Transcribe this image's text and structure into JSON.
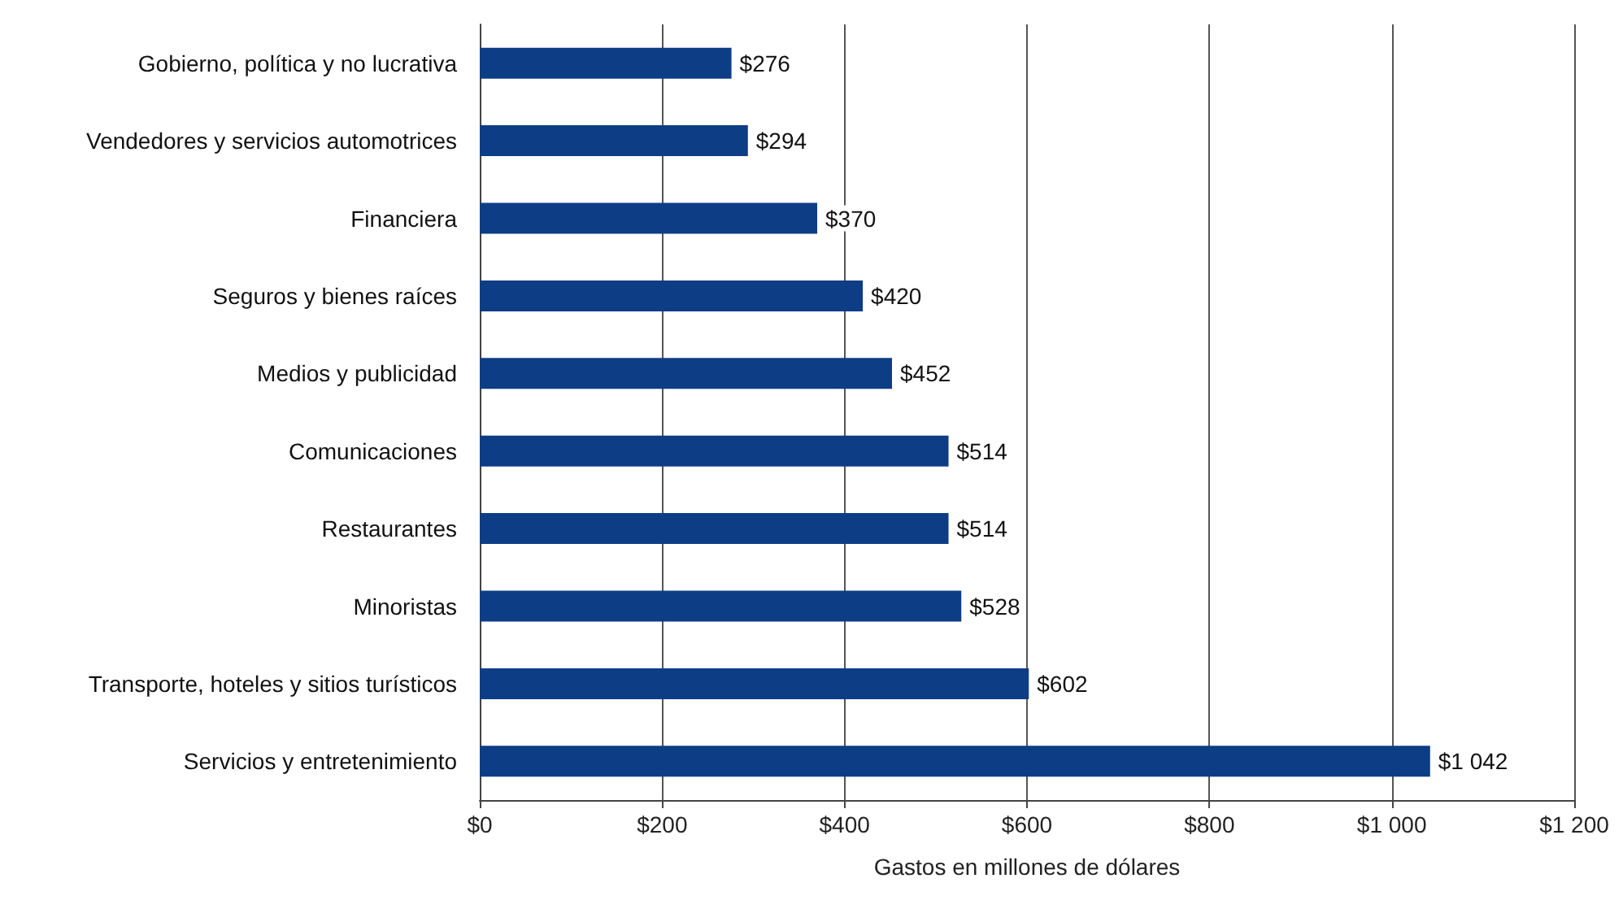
{
  "chart_data": {
    "type": "bar",
    "orientation": "horizontal",
    "xlabel": "Gastos en millones de dólares",
    "categories": [
      "Gobierno, política y no lucrativa",
      "Vendedores y servicios automotrices",
      "Financiera",
      "Seguros y bienes raíces",
      "Medios y publicidad",
      "Comunicaciones",
      "Restaurantes",
      "Minoristas",
      "Transporte, hoteles y sitios turísticos",
      "Servicios y entretenimiento"
    ],
    "values": [
      276,
      294,
      370,
      420,
      452,
      514,
      514,
      528,
      602,
      1042
    ],
    "value_labels": [
      "$276",
      "$294",
      "$370",
      "$420",
      "$452",
      "$514",
      "$514",
      "$528",
      "$602",
      "$1 042"
    ],
    "color": "#0d3d85",
    "xlim": [
      0,
      1200
    ],
    "xticks": [
      {
        "value": 0,
        "label": "$0"
      },
      {
        "value": 200,
        "label": "$200"
      },
      {
        "value": 400,
        "label": "$400"
      },
      {
        "value": 600,
        "label": "$600"
      },
      {
        "value": 800,
        "label": "$800"
      },
      {
        "value": 1000,
        "label": "$1 000"
      },
      {
        "value": 1200,
        "label": "$1 200"
      }
    ],
    "grid": "x"
  }
}
